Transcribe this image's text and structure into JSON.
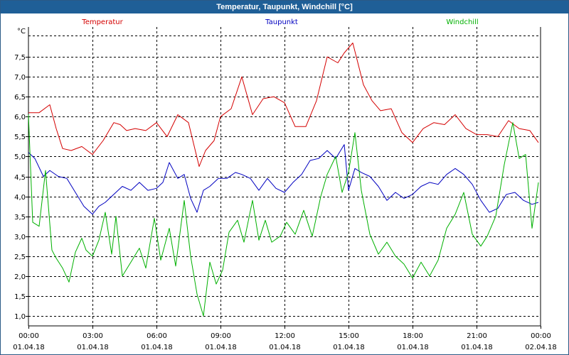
{
  "window": {
    "title": "Temperatur, Taupunkt, Windchill [°C]"
  },
  "chart_data": {
    "type": "line",
    "title": "Temperatur, Taupunkt, Windchill [°C]",
    "ylabel": "°C",
    "ylim": [
      0.75,
      8.25
    ],
    "xlim": [
      0,
      24
    ],
    "grid": true,
    "y_ticks": [
      1.0,
      1.5,
      2.0,
      2.5,
      3.0,
      3.5,
      4.0,
      4.5,
      5.0,
      5.5,
      6.0,
      6.5,
      7.0,
      7.5
    ],
    "y_tick_labels": [
      "1,0",
      "1,5",
      "2,0",
      "2,5",
      "3,0",
      "3,5",
      "4,0",
      "4,5",
      "5,0",
      "5,5",
      "6,0",
      "6,5",
      "7,0",
      "7,5"
    ],
    "x_ticks": [
      {
        "hour": 0,
        "time": "00:00",
        "date": "01.04.18"
      },
      {
        "hour": 3,
        "time": "03:00",
        "date": "01.04.18"
      },
      {
        "hour": 6,
        "time": "06:00",
        "date": "01.04.18"
      },
      {
        "hour": 9,
        "time": "09:00",
        "date": "01.04.18"
      },
      {
        "hour": 12,
        "time": "12:00",
        "date": "01.04.18"
      },
      {
        "hour": 15,
        "time": "15:00",
        "date": "01.04.18"
      },
      {
        "hour": 18,
        "time": "18:00",
        "date": "01.04.18"
      },
      {
        "hour": 21,
        "time": "21:00",
        "date": "01.04.18"
      },
      {
        "hour": 24,
        "time": "00:00",
        "date": "02.04.18"
      }
    ],
    "series": [
      {
        "name": "Temperatur",
        "color": "#d40000",
        "x": [
          0,
          0.5,
          1,
          1.3,
          1.6,
          2,
          2.5,
          3,
          3.5,
          4,
          4.3,
          4.6,
          5,
          5.5,
          6,
          6.5,
          7,
          7.5,
          8,
          8.3,
          8.7,
          9,
          9.5,
          10,
          10.5,
          11,
          11.5,
          12,
          12.5,
          13,
          13.5,
          14,
          14.5,
          14.8,
          15.2,
          15.7,
          16.1,
          16.5,
          17,
          17.5,
          18,
          18.5,
          19,
          19.5,
          20,
          20.5,
          21,
          21.5,
          22,
          22.5,
          23,
          23.5,
          23.9
        ],
        "values": [
          6.1,
          6.1,
          6.3,
          5.7,
          5.2,
          5.15,
          5.25,
          5.05,
          5.4,
          5.85,
          5.8,
          5.65,
          5.7,
          5.65,
          5.85,
          5.5,
          6.05,
          5.85,
          4.75,
          5.15,
          5.4,
          6.0,
          6.2,
          7.0,
          6.05,
          6.45,
          6.5,
          6.35,
          5.75,
          5.75,
          6.4,
          7.5,
          7.35,
          7.6,
          7.85,
          6.8,
          6.4,
          6.15,
          6.2,
          5.6,
          5.35,
          5.7,
          5.85,
          5.8,
          6.05,
          5.7,
          5.55,
          5.55,
          5.5,
          5.9,
          5.7,
          5.65,
          5.35
        ]
      },
      {
        "name": "Taupunkt",
        "color": "#0000c0",
        "x": [
          0,
          0.3,
          0.7,
          1,
          1.4,
          1.8,
          2.2,
          2.6,
          3,
          3.3,
          3.6,
          4,
          4.4,
          4.8,
          5.2,
          5.6,
          6,
          6.3,
          6.6,
          7,
          7.3,
          7.6,
          7.9,
          8.2,
          8.5,
          8.9,
          9.3,
          9.7,
          10,
          10.4,
          10.8,
          11.2,
          11.6,
          12,
          12.4,
          12.8,
          13.2,
          13.6,
          14,
          14.4,
          14.8,
          15,
          15.3,
          15.6,
          16,
          16.4,
          16.8,
          17.2,
          17.6,
          18,
          18.4,
          18.8,
          19.2,
          19.6,
          20,
          20.4,
          20.8,
          21.2,
          21.6,
          22,
          22.4,
          22.8,
          23.2,
          23.6,
          23.9
        ],
        "values": [
          5.1,
          4.95,
          4.5,
          4.65,
          4.5,
          4.45,
          4.1,
          3.75,
          3.55,
          3.75,
          3.85,
          4.05,
          4.25,
          4.15,
          4.35,
          4.15,
          4.2,
          4.35,
          4.85,
          4.45,
          4.55,
          3.95,
          3.6,
          4.15,
          4.25,
          4.45,
          4.45,
          4.6,
          4.55,
          4.45,
          4.15,
          4.45,
          4.2,
          4.1,
          4.35,
          4.55,
          4.9,
          4.95,
          5.15,
          4.95,
          5.3,
          4.15,
          4.7,
          4.6,
          4.5,
          4.25,
          3.9,
          4.1,
          3.95,
          4.05,
          4.25,
          4.35,
          4.3,
          4.55,
          4.7,
          4.55,
          4.3,
          3.9,
          3.6,
          3.7,
          4.05,
          4.1,
          3.9,
          3.8,
          3.85
        ]
      },
      {
        "name": "Windchill",
        "color": "#00b000",
        "x": [
          0,
          0.2,
          0.5,
          0.8,
          1.1,
          1.3,
          1.6,
          1.9,
          2.2,
          2.5,
          2.7,
          3,
          3.3,
          3.6,
          3.9,
          4.1,
          4.4,
          4.8,
          5.2,
          5.5,
          5.9,
          6.2,
          6.6,
          6.9,
          7.3,
          7.6,
          7.9,
          8.2,
          8.5,
          8.8,
          9.1,
          9.4,
          9.8,
          10.1,
          10.5,
          10.8,
          11.1,
          11.4,
          11.8,
          12.1,
          12.5,
          12.9,
          13.3,
          13.7,
          14,
          14.4,
          14.7,
          15,
          15.3,
          15.6,
          16,
          16.4,
          16.8,
          17.2,
          17.6,
          18,
          18.4,
          18.8,
          19.2,
          19.6,
          20,
          20.4,
          20.8,
          21.2,
          21.5,
          21.9,
          22.3,
          22.7,
          23,
          23.3,
          23.6,
          23.9
        ],
        "values": [
          6.05,
          3.35,
          3.25,
          4.65,
          2.65,
          2.45,
          2.2,
          1.85,
          2.6,
          2.95,
          2.65,
          2.5,
          2.9,
          3.6,
          2.55,
          3.5,
          2.0,
          2.35,
          2.7,
          2.2,
          3.45,
          2.4,
          3.2,
          2.25,
          3.9,
          2.5,
          1.55,
          1.0,
          2.35,
          1.8,
          2.15,
          3.1,
          3.4,
          2.85,
          3.9,
          2.9,
          3.4,
          2.85,
          3.0,
          3.35,
          3.05,
          3.65,
          3.0,
          4.0,
          4.55,
          5.0,
          4.1,
          4.6,
          5.6,
          4.15,
          3.05,
          2.55,
          2.85,
          2.5,
          2.3,
          1.95,
          2.35,
          2.0,
          2.4,
          3.2,
          3.55,
          4.1,
          3.05,
          2.75,
          3.0,
          3.5,
          4.8,
          5.85,
          4.95,
          5.05,
          3.2,
          4.35
        ]
      }
    ],
    "legend": [
      {
        "name": "Temperatur",
        "color": "#d40000",
        "position": "top-left"
      },
      {
        "name": "Taupunkt",
        "color": "#0000c0",
        "position": "top-center"
      },
      {
        "name": "Windchill",
        "color": "#00b000",
        "position": "top-right"
      }
    ]
  }
}
